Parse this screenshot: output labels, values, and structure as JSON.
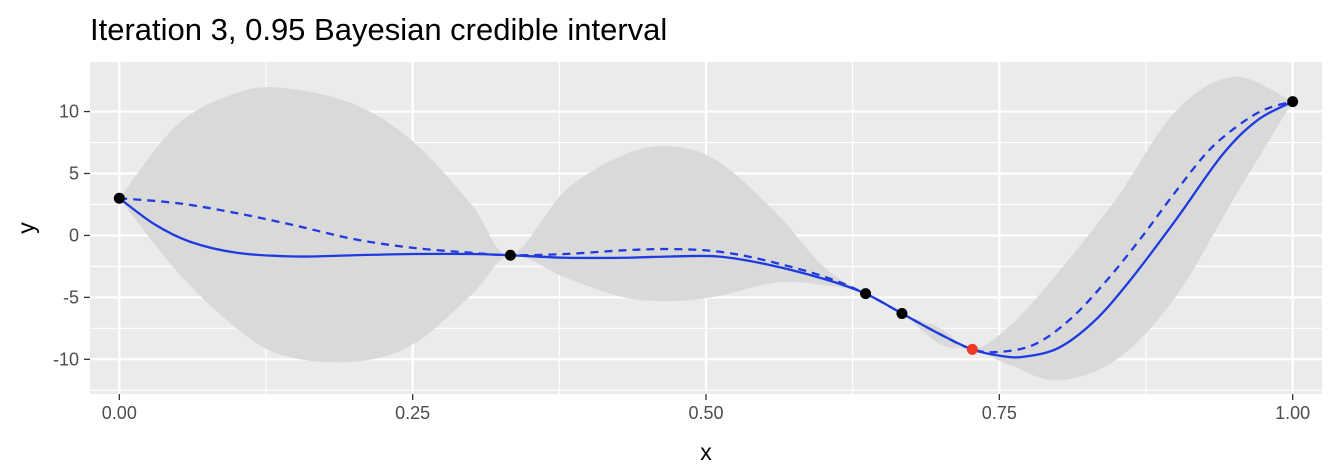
{
  "chart_data": {
    "type": "line",
    "title": "Iteration 3, 0.95 Bayesian credible interval",
    "xlabel": "x",
    "ylabel": "y",
    "xlim": [
      -0.025,
      1.025
    ],
    "ylim": [
      -12.8,
      14.0
    ],
    "x_ticks": [
      0.0,
      0.25,
      0.5,
      0.75,
      1.0
    ],
    "x_tick_labels": [
      "0.00",
      "0.25",
      "0.50",
      "0.75",
      "1.00"
    ],
    "y_ticks": [
      10,
      5,
      0,
      -5,
      -10
    ],
    "y_tick_labels": [
      "10",
      "5",
      "0",
      "-5",
      "-10"
    ],
    "grid": true,
    "legend": "none",
    "colors": {
      "panel": "#ebebeb",
      "grid": "#ffffff",
      "band": "#d9d9d9",
      "line": "#1f3be0",
      "point": "#000000",
      "highlight": "#f03a24"
    },
    "series": [
      {
        "style": "credible-band",
        "x": [
          0.0,
          0.05,
          0.1,
          0.14,
          0.2,
          0.25,
          0.3,
          0.3333,
          0.38,
          0.43,
          0.47,
          0.51,
          0.56,
          0.6,
          0.636,
          0.667,
          0.7,
          0.727,
          0.76,
          0.8,
          0.85,
          0.9,
          0.95,
          1.0
        ],
        "lower": [
          3.0,
          -3.0,
          -7.5,
          -9.7,
          -10.2,
          -8.8,
          -4.8,
          -1.6,
          -3.4,
          -5.0,
          -5.3,
          -4.9,
          -3.8,
          -4.0,
          -4.7,
          -6.3,
          -8.8,
          -9.2,
          -10.5,
          -11.7,
          -10.0,
          -5.0,
          3.0,
          10.8
        ],
        "upper": [
          3.0,
          9.0,
          11.5,
          11.9,
          10.6,
          7.6,
          2.5,
          -1.6,
          3.6,
          6.5,
          7.2,
          6.0,
          1.8,
          -2.5,
          -4.7,
          -6.3,
          -7.5,
          -9.2,
          -7.2,
          -3.0,
          3.0,
          10.0,
          12.8,
          10.8
        ]
      },
      {
        "style": "solid",
        "x": [
          0.0,
          0.03,
          0.06,
          0.1,
          0.15,
          0.2,
          0.25,
          0.3,
          0.3333,
          0.38,
          0.43,
          0.47,
          0.51,
          0.55,
          0.6,
          0.636,
          0.667,
          0.7,
          0.727,
          0.75,
          0.77,
          0.8,
          0.83,
          0.86,
          0.9,
          0.94,
          0.97,
          1.0
        ],
        "y": [
          3.0,
          0.9,
          -0.5,
          -1.4,
          -1.7,
          -1.6,
          -1.5,
          -1.5,
          -1.6,
          -1.8,
          -1.8,
          -1.7,
          -1.7,
          -2.3,
          -3.5,
          -4.7,
          -6.3,
          -8.0,
          -9.2,
          -9.7,
          -9.8,
          -9.1,
          -7.0,
          -3.8,
          1.2,
          6.5,
          9.3,
          10.8
        ]
      },
      {
        "style": "dashed",
        "x": [
          0.0,
          0.05,
          0.1,
          0.15,
          0.2,
          0.25,
          0.3,
          0.3333,
          0.38,
          0.43,
          0.47,
          0.51,
          0.55,
          0.6,
          0.636,
          0.667,
          0.7,
          0.727,
          0.75,
          0.78,
          0.81,
          0.84,
          0.87,
          0.9,
          0.93,
          0.96,
          0.98,
          1.0
        ],
        "y": [
          3.0,
          2.6,
          1.8,
          0.8,
          -0.3,
          -1.0,
          -1.4,
          -1.6,
          -1.5,
          -1.2,
          -1.1,
          -1.3,
          -2.0,
          -3.3,
          -4.7,
          -6.3,
          -8.0,
          -9.2,
          -9.4,
          -8.8,
          -6.8,
          -3.8,
          -0.3,
          3.5,
          7.0,
          9.3,
          10.3,
          10.8
        ]
      }
    ],
    "points": [
      {
        "x": 0.0,
        "y": 3.0
      },
      {
        "x": 0.3333,
        "y": -1.6
      },
      {
        "x": 0.636,
        "y": -4.7
      },
      {
        "x": 0.667,
        "y": -6.3
      },
      {
        "x": 1.0,
        "y": 10.8
      }
    ],
    "highlight_point": {
      "x": 0.727,
      "y": -9.2
    }
  }
}
